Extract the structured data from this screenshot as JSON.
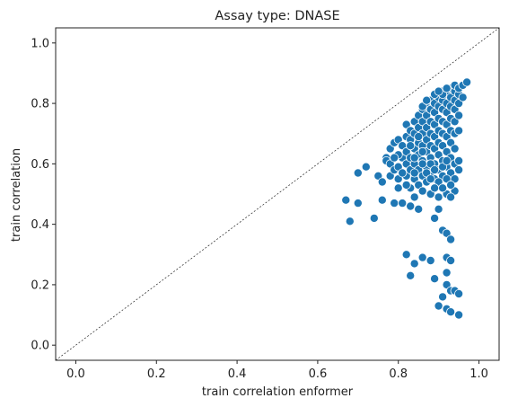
{
  "chart_data": {
    "type": "scatter",
    "title": "Assay type: DNASE",
    "xlabel": "train correlation enformer",
    "ylabel": "train correlation",
    "xlim": [
      -0.05,
      1.05
    ],
    "ylim": [
      -0.05,
      1.05
    ],
    "xticks": [
      0.0,
      0.2,
      0.4,
      0.6,
      0.8,
      1.0
    ],
    "yticks": [
      0.0,
      0.2,
      0.4,
      0.6,
      0.8,
      1.0
    ],
    "xtick_labels": [
      "0.0",
      "0.2",
      "0.4",
      "0.6",
      "0.8",
      "1.0"
    ],
    "ytick_labels": [
      "0.0",
      "0.2",
      "0.4",
      "0.6",
      "0.8",
      "1.0"
    ],
    "grid": false,
    "reference_line": "y = x (dashed)",
    "point_color": "#1f77b4",
    "points": [
      [
        0.67,
        0.48
      ],
      [
        0.68,
        0.41
      ],
      [
        0.7,
        0.47
      ],
      [
        0.7,
        0.57
      ],
      [
        0.72,
        0.59
      ],
      [
        0.74,
        0.42
      ],
      [
        0.75,
        0.56
      ],
      [
        0.76,
        0.48
      ],
      [
        0.76,
        0.54
      ],
      [
        0.77,
        0.62
      ],
      [
        0.77,
        0.61
      ],
      [
        0.78,
        0.6
      ],
      [
        0.78,
        0.56
      ],
      [
        0.78,
        0.65
      ],
      [
        0.79,
        0.58
      ],
      [
        0.79,
        0.47
      ],
      [
        0.79,
        0.67
      ],
      [
        0.8,
        0.55
      ],
      [
        0.8,
        0.52
      ],
      [
        0.8,
        0.59
      ],
      [
        0.8,
        0.68
      ],
      [
        0.81,
        0.47
      ],
      [
        0.81,
        0.62
      ],
      [
        0.81,
        0.66
      ],
      [
        0.82,
        0.56
      ],
      [
        0.82,
        0.6
      ],
      [
        0.82,
        0.64
      ],
      [
        0.82,
        0.69
      ],
      [
        0.82,
        0.73
      ],
      [
        0.82,
        0.3
      ],
      [
        0.83,
        0.46
      ],
      [
        0.83,
        0.52
      ],
      [
        0.83,
        0.58
      ],
      [
        0.83,
        0.62
      ],
      [
        0.83,
        0.68
      ],
      [
        0.83,
        0.71
      ],
      [
        0.83,
        0.23
      ],
      [
        0.84,
        0.49
      ],
      [
        0.84,
        0.55
      ],
      [
        0.84,
        0.6
      ],
      [
        0.84,
        0.65
      ],
      [
        0.84,
        0.7
      ],
      [
        0.84,
        0.74
      ],
      [
        0.84,
        0.27
      ],
      [
        0.85,
        0.45
      ],
      [
        0.85,
        0.53
      ],
      [
        0.85,
        0.58
      ],
      [
        0.85,
        0.63
      ],
      [
        0.85,
        0.67
      ],
      [
        0.85,
        0.72
      ],
      [
        0.85,
        0.76
      ],
      [
        0.86,
        0.29
      ],
      [
        0.86,
        0.51
      ],
      [
        0.86,
        0.56
      ],
      [
        0.86,
        0.61
      ],
      [
        0.86,
        0.66
      ],
      [
        0.86,
        0.7
      ],
      [
        0.86,
        0.74
      ],
      [
        0.86,
        0.78
      ],
      [
        0.87,
        0.54
      ],
      [
        0.87,
        0.59
      ],
      [
        0.87,
        0.64
      ],
      [
        0.87,
        0.68
      ],
      [
        0.87,
        0.72
      ],
      [
        0.87,
        0.76
      ],
      [
        0.87,
        0.79
      ],
      [
        0.88,
        0.5
      ],
      [
        0.88,
        0.57
      ],
      [
        0.88,
        0.62
      ],
      [
        0.88,
        0.66
      ],
      [
        0.88,
        0.7
      ],
      [
        0.88,
        0.74
      ],
      [
        0.88,
        0.78
      ],
      [
        0.88,
        0.81
      ],
      [
        0.89,
        0.42
      ],
      [
        0.89,
        0.55
      ],
      [
        0.89,
        0.6
      ],
      [
        0.89,
        0.65
      ],
      [
        0.89,
        0.69
      ],
      [
        0.89,
        0.73
      ],
      [
        0.89,
        0.77
      ],
      [
        0.89,
        0.8
      ],
      [
        0.89,
        0.22
      ],
      [
        0.9,
        0.49
      ],
      [
        0.9,
        0.58
      ],
      [
        0.9,
        0.63
      ],
      [
        0.9,
        0.67
      ],
      [
        0.9,
        0.71
      ],
      [
        0.9,
        0.75
      ],
      [
        0.9,
        0.79
      ],
      [
        0.9,
        0.82
      ],
      [
        0.9,
        0.45
      ],
      [
        0.9,
        0.13
      ],
      [
        0.91,
        0.38
      ],
      [
        0.91,
        0.56
      ],
      [
        0.91,
        0.61
      ],
      [
        0.91,
        0.66
      ],
      [
        0.91,
        0.7
      ],
      [
        0.91,
        0.74
      ],
      [
        0.91,
        0.78
      ],
      [
        0.91,
        0.81
      ],
      [
        0.91,
        0.84
      ],
      [
        0.91,
        0.16
      ],
      [
        0.92,
        0.37
      ],
      [
        0.92,
        0.5
      ],
      [
        0.92,
        0.59
      ],
      [
        0.92,
        0.64
      ],
      [
        0.92,
        0.69
      ],
      [
        0.92,
        0.73
      ],
      [
        0.92,
        0.77
      ],
      [
        0.92,
        0.8
      ],
      [
        0.92,
        0.83
      ],
      [
        0.92,
        0.29
      ],
      [
        0.92,
        0.24
      ],
      [
        0.92,
        0.2
      ],
      [
        0.92,
        0.12
      ],
      [
        0.93,
        0.35
      ],
      [
        0.93,
        0.57
      ],
      [
        0.93,
        0.62
      ],
      [
        0.93,
        0.67
      ],
      [
        0.93,
        0.71
      ],
      [
        0.93,
        0.75
      ],
      [
        0.93,
        0.79
      ],
      [
        0.93,
        0.82
      ],
      [
        0.93,
        0.85
      ],
      [
        0.93,
        0.28
      ],
      [
        0.93,
        0.18
      ],
      [
        0.93,
        0.11
      ],
      [
        0.94,
        0.51
      ],
      [
        0.94,
        0.6
      ],
      [
        0.94,
        0.65
      ],
      [
        0.94,
        0.7
      ],
      [
        0.94,
        0.74
      ],
      [
        0.94,
        0.78
      ],
      [
        0.94,
        0.81
      ],
      [
        0.94,
        0.84
      ],
      [
        0.94,
        0.86
      ],
      [
        0.94,
        0.18
      ],
      [
        0.95,
        0.58
      ],
      [
        0.95,
        0.71
      ],
      [
        0.95,
        0.76
      ],
      [
        0.95,
        0.8
      ],
      [
        0.95,
        0.83
      ],
      [
        0.95,
        0.85
      ],
      [
        0.95,
        0.17
      ],
      [
        0.95,
        0.1
      ],
      [
        0.96,
        0.82
      ],
      [
        0.96,
        0.86
      ],
      [
        0.97,
        0.87
      ],
      [
        0.88,
        0.28
      ],
      [
        0.86,
        0.79
      ],
      [
        0.91,
        0.83
      ],
      [
        0.89,
        0.83
      ],
      [
        0.9,
        0.84
      ],
      [
        0.92,
        0.85
      ],
      [
        0.87,
        0.81
      ],
      [
        0.85,
        0.69
      ],
      [
        0.84,
        0.62
      ],
      [
        0.83,
        0.66
      ],
      [
        0.86,
        0.64
      ],
      [
        0.88,
        0.6
      ],
      [
        0.89,
        0.58
      ],
      [
        0.9,
        0.54
      ],
      [
        0.91,
        0.52
      ],
      [
        0.93,
        0.49
      ],
      [
        0.92,
        0.55
      ],
      [
        0.94,
        0.55
      ],
      [
        0.95,
        0.61
      ],
      [
        0.93,
        0.53
      ],
      [
        0.8,
        0.63
      ],
      [
        0.79,
        0.62
      ],
      [
        0.81,
        0.57
      ],
      [
        0.82,
        0.53
      ],
      [
        0.84,
        0.57
      ],
      [
        0.86,
        0.6
      ],
      [
        0.87,
        0.57
      ],
      [
        0.88,
        0.55
      ],
      [
        0.89,
        0.52
      ],
      [
        0.91,
        0.59
      ],
      [
        0.92,
        0.61
      ]
    ]
  }
}
